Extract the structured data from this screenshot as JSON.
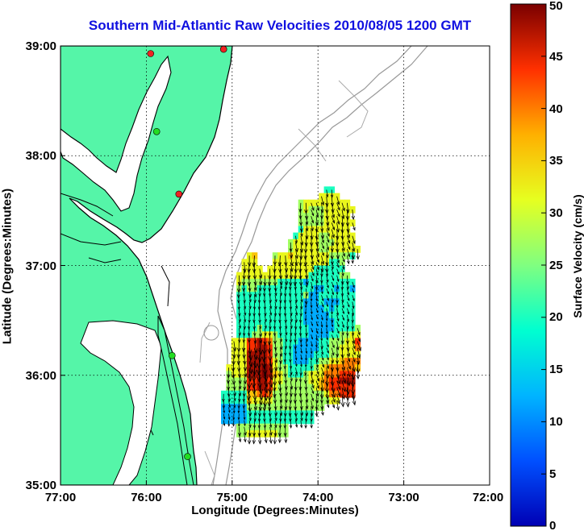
{
  "title": "Southern Mid-Atlantic Raw Velocities 2010/08/05 1200 GMT",
  "axes": {
    "xlabel": "Longitude (Degrees:Minutes)",
    "ylabel": "Latitude (Degrees:Minutes)",
    "x_ticks": [
      "77:00",
      "76:00",
      "75:00",
      "74:00",
      "73:00",
      "72:00"
    ],
    "y_ticks": [
      "39:00",
      "38:00",
      "37:00",
      "36:00",
      "35:00"
    ],
    "x_range_deg_west": [
      77,
      72
    ],
    "y_range_deg_north": [
      35,
      39
    ],
    "grid": "dotted"
  },
  "colorbar": {
    "label": "Surface Velocity (cm/s)",
    "min": 0,
    "max": 50,
    "ticks": [
      "0",
      "5",
      "10",
      "15",
      "20",
      "25",
      "30",
      "35",
      "40",
      "45",
      "50"
    ],
    "colormap": "jet"
  },
  "colors": {
    "land": "#55f5a8",
    "water": "#ffffff",
    "coastline": "#000000",
    "bathymetry": "#999999",
    "title": "#1010e0",
    "site_active": "#22dd22",
    "site_inactive": "#ee2222"
  },
  "sites": [
    {
      "lon": -75.1,
      "lat": 38.97,
      "status": "inactive"
    },
    {
      "lon": -75.95,
      "lat": 38.93,
      "status": "inactive"
    },
    {
      "lon": -75.88,
      "lat": 38.22,
      "status": "active"
    },
    {
      "lon": -75.62,
      "lat": 37.65,
      "status": "inactive"
    },
    {
      "lon": -75.7,
      "lat": 36.18,
      "status": "active"
    },
    {
      "lon": -75.52,
      "lat": 35.26,
      "status": "active"
    }
  ],
  "chart_data": {
    "type": "heatmap",
    "variable": "surface current speed",
    "units": "cm/s",
    "vmin": 0,
    "vmax": 50,
    "grid_origin": {
      "lon": -75.25,
      "lat": 37.72
    },
    "grid_step": {
      "dlon": 0.06,
      "dlat": -0.06
    },
    "rows": [
      "......................22....",
      ".....................4444...",
      ".................3444444444..",
      ".................34333444444.",
      ".................3333344444..",
      ".................33333444444.",
      ".................2444444444..",
      "................244443344444.",
      "...............3444443334444.",
      "...............34444433444444",
      ".......45...3445444444433332.",
      "......444...44444444444223...",
      "......4444.444444444222222...",
      ".....4444444444444422222233..",
      ".....43333333222221222222222.",
      ".....32332222222222211221221.",
      ".....22222222222223112222222.",
      ".....22222222222221112111222.",
      ".....22222222222221111212222.",
      ".....22222222222221111122222.",
      ".....22222222222221111112222.",
      ".....222232222222221111122223",
      ".....222334432222221111223344",
      "....4447787633222111122333447",
      "....4447788733221111122334446",
      "....4448888733221111222334444",
      "....4448888743221112233445666",
      "...44448889843322222345666665",
      "...3444888985432223444666777.",
      "...3333778874433333445677888.",
      "...3333778874333333345677777.",
      "..22222556763333333333466777.",
      "..22222544443333333333344....",
      "..11111333333333333333.......",
      "..111112222222222222.........",
      "..111112222222222222.........",
      ".....3333333333..............",
      ".....3344444433.............."
    ],
    "level_speeds_cm_s": [
      0,
      12,
      20,
      27,
      32,
      36,
      40,
      44,
      48,
      50
    ],
    "vector_field": "arrow per grid cell, length proportional to speed, dominant flow southward to south-westward"
  }
}
